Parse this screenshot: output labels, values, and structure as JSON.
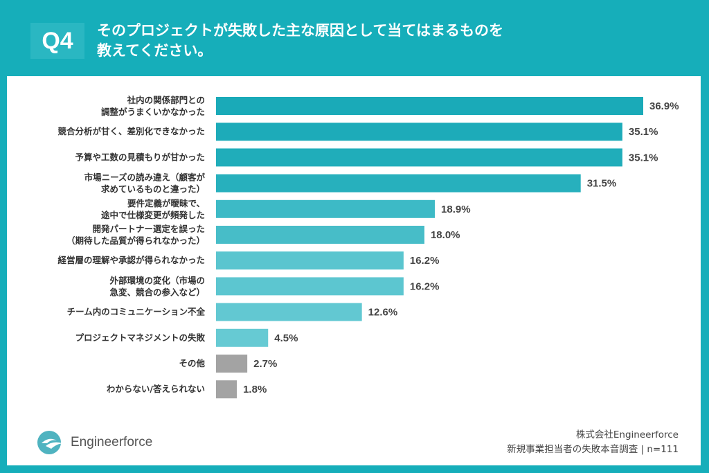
{
  "header": {
    "badge": "Q4",
    "title_line1": "そのプロジェクトが失敗した主な原因として当てはまるものを",
    "title_line2": "教えてください。"
  },
  "chart_data": {
    "type": "bar",
    "orientation": "horizontal",
    "categories": [
      [
        "社内の関係部門との",
        "調整がうまくいかなかった"
      ],
      [
        "競合分析が甘く、差別化できなかった"
      ],
      [
        "予算や工数の見積もりが甘かった"
      ],
      [
        "市場ニーズの読み違え（顧客が",
        "求めているものと違った）"
      ],
      [
        "要件定義が曖昧で、",
        "途中で仕様変更が頻発した"
      ],
      [
        "開発パートナー選定を誤った",
        "（期待した品質が得られなかった）"
      ],
      [
        "経営層の理解や承認が得られなかった"
      ],
      [
        "外部環境の変化（市場の",
        "急変、競合の参入など）"
      ],
      [
        "チーム内のコミュニケーション不全"
      ],
      [
        "プロジェクトマネジメントの失敗"
      ],
      [
        "その他"
      ],
      [
        "わからない/答えられない"
      ]
    ],
    "values": [
      36.9,
      35.1,
      35.1,
      31.5,
      18.9,
      18.0,
      16.2,
      16.2,
      12.6,
      4.5,
      2.7,
      1.8
    ],
    "value_labels": [
      "36.9%",
      "35.1%",
      "35.1%",
      "31.5%",
      "18.9%",
      "18.0%",
      "16.2%",
      "16.2%",
      "12.6%",
      "4.5%",
      "2.7%",
      "1.8%"
    ],
    "colors": [
      "#1aaab8",
      "#1dabb9",
      "#20adba",
      "#27b0bd",
      "#3dbac6",
      "#47bdc8",
      "#5ac5cf",
      "#5cc6d0",
      "#62c8d2",
      "#66cad3",
      "#a3a3a3",
      "#a3a3a3"
    ],
    "xlim": [
      0,
      36.9
    ],
    "grid": false
  },
  "footer": {
    "company": "株式会社Engineerforce",
    "survey": "新規事業担当者の失敗本音調査 | n=111",
    "logo_text": "Engineerforce"
  }
}
